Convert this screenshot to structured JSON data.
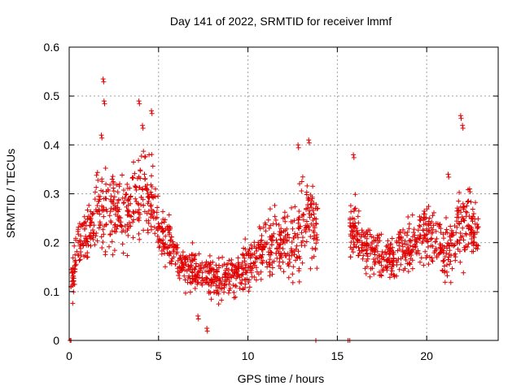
{
  "chart_data": {
    "type": "scatter",
    "title": "Day 141 of 2022, SRMTID for receiver lmmf",
    "xlabel": "GPS time / hours",
    "ylabel": "SRMTID / TECUs",
    "xlim": [
      0,
      24
    ],
    "ylim": [
      0,
      0.6
    ],
    "xticks": [
      0,
      5,
      10,
      15,
      20
    ],
    "yticks": [
      0,
      0.1,
      0.2,
      0.3,
      0.4,
      0.5,
      0.6
    ],
    "xtick_labels": [
      "0",
      "5",
      "10",
      "15",
      "20"
    ],
    "ytick_labels": [
      "0",
      "0.1",
      "0.2",
      "0.3",
      "0.4",
      "0.5",
      "0.6"
    ],
    "grid": true,
    "marker": "plus",
    "marker_color": "#e00000",
    "series": [
      {
        "name": "SRMTID",
        "envelope": {
          "x": [
            0.1,
            0.5,
            1.0,
            1.5,
            2.0,
            2.5,
            3.0,
            3.5,
            4.0,
            4.5,
            5.0,
            5.5,
            6.0,
            6.5,
            7.0,
            7.5,
            8.0,
            8.5,
            9.0,
            9.5,
            10.0,
            10.5,
            11.0,
            11.5,
            12.0,
            12.5,
            13.0,
            13.5,
            13.9,
            15.7,
            16.0,
            16.5,
            17.0,
            17.5,
            18.0,
            18.5,
            19.0,
            19.5,
            20.0,
            20.5,
            21.0,
            21.5,
            22.0,
            22.5,
            22.9
          ],
          "median": [
            0.12,
            0.19,
            0.22,
            0.26,
            0.27,
            0.26,
            0.25,
            0.27,
            0.29,
            0.29,
            0.23,
            0.2,
            0.17,
            0.15,
            0.14,
            0.13,
            0.12,
            0.13,
            0.13,
            0.14,
            0.15,
            0.17,
            0.2,
            0.2,
            0.19,
            0.2,
            0.23,
            0.25,
            0.22,
            0.22,
            0.23,
            0.2,
            0.18,
            0.17,
            0.16,
            0.18,
            0.19,
            0.21,
            0.22,
            0.2,
            0.17,
            0.2,
            0.24,
            0.23,
            0.21
          ],
          "spread": [
            0.04,
            0.05,
            0.05,
            0.07,
            0.08,
            0.07,
            0.07,
            0.08,
            0.09,
            0.08,
            0.06,
            0.05,
            0.04,
            0.04,
            0.04,
            0.04,
            0.04,
            0.04,
            0.04,
            0.04,
            0.04,
            0.05,
            0.07,
            0.07,
            0.06,
            0.07,
            0.08,
            0.08,
            0.06,
            0.06,
            0.06,
            0.05,
            0.05,
            0.04,
            0.04,
            0.04,
            0.05,
            0.05,
            0.06,
            0.05,
            0.05,
            0.06,
            0.08,
            0.06,
            0.05
          ]
        },
        "peaks": [
          {
            "x": 1.9,
            "y": 0.535
          },
          {
            "x": 1.95,
            "y": 0.49
          },
          {
            "x": 1.8,
            "y": 0.42
          },
          {
            "x": 3.9,
            "y": 0.49
          },
          {
            "x": 4.6,
            "y": 0.47
          },
          {
            "x": 4.1,
            "y": 0.44
          },
          {
            "x": 7.2,
            "y": 0.05
          },
          {
            "x": 7.7,
            "y": 0.025
          },
          {
            "x": 13.4,
            "y": 0.41
          },
          {
            "x": 12.8,
            "y": 0.4
          },
          {
            "x": 15.9,
            "y": 0.38
          },
          {
            "x": 21.9,
            "y": 0.46
          },
          {
            "x": 22.0,
            "y": 0.44
          },
          {
            "x": 21.2,
            "y": 0.34
          },
          {
            "x": 22.4,
            "y": 0.31
          }
        ],
        "zero_points": [
          0.05,
          0.1,
          13.8,
          15.6,
          15.7
        ]
      }
    ]
  }
}
